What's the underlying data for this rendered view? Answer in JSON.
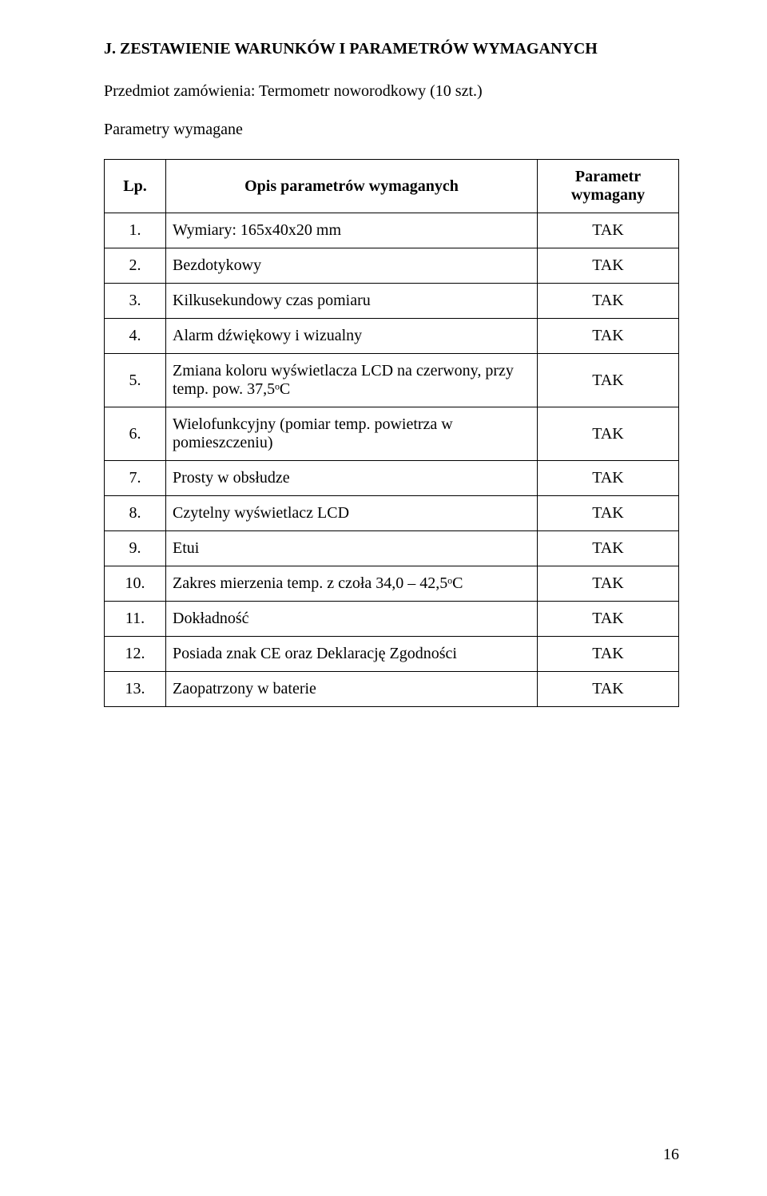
{
  "heading": "J. ZESTAWIENIE WARUNKÓW I PARAMETRÓW WYMAGANYCH",
  "subheading": "Przedmiot zamówienia: Termometr noworodkowy (10 szt.)",
  "params_required_label": "Parametry wymagane",
  "table": {
    "header": {
      "lp": "Lp.",
      "desc": "Opis parametrów wymaganych",
      "param": "Parametr wymagany"
    },
    "rows": [
      {
        "lp": "1.",
        "desc": "Wymiary: 165x40x20 mm",
        "param": "TAK"
      },
      {
        "lp": "2.",
        "desc": "Bezdotykowy",
        "param": "TAK"
      },
      {
        "lp": "3.",
        "desc": "Kilkusekundowy czas pomiaru",
        "param": "TAK"
      },
      {
        "lp": "4.",
        "desc": "Alarm dźwiękowy i wizualny",
        "param": "TAK"
      },
      {
        "lp": "5.",
        "desc": "Zmiana koloru wyświetlacza LCD na czerwony, przy temp. pow. 37,5ᵒC",
        "param": "TAK"
      },
      {
        "lp": "6.",
        "desc": "Wielofunkcyjny (pomiar temp. powietrza w pomieszczeniu)",
        "param": "TAK"
      },
      {
        "lp": "7.",
        "desc": "Prosty w obsłudze",
        "param": "TAK"
      },
      {
        "lp": "8.",
        "desc": "Czytelny wyświetlacz LCD",
        "param": "TAK"
      },
      {
        "lp": "9.",
        "desc": "Etui",
        "param": "TAK"
      },
      {
        "lp": "10.",
        "desc": "Zakres mierzenia temp. z czoła 34,0 – 42,5ᵒC",
        "param": "TAK"
      },
      {
        "lp": "11.",
        "desc": "Dokładność",
        "param": "TAK"
      },
      {
        "lp": "12.",
        "desc": "Posiada znak CE oraz Deklarację Zgodności",
        "param": "TAK"
      },
      {
        "lp": "13.",
        "desc": "Zaopatrzony w baterie",
        "param": "TAK"
      }
    ]
  },
  "page_number": "16"
}
